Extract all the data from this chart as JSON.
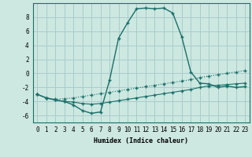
{
  "xlabel": "Humidex (Indice chaleur)",
  "background_color": "#cce8e0",
  "grid_color": "#aacccc",
  "line_color": "#1a6e6a",
  "xlim": [
    -0.5,
    23.5
  ],
  "ylim": [
    -7,
    10
  ],
  "xticks": [
    0,
    1,
    2,
    3,
    4,
    5,
    6,
    7,
    8,
    9,
    10,
    11,
    12,
    13,
    14,
    15,
    16,
    17,
    18,
    19,
    20,
    21,
    22,
    23
  ],
  "yticks": [
    -6,
    -4,
    -2,
    0,
    2,
    4,
    6,
    8
  ],
  "series1_x": [
    0,
    1,
    2,
    3,
    4,
    5,
    6,
    7,
    8,
    9,
    10,
    11,
    12,
    13,
    14,
    15,
    16,
    17,
    18,
    19,
    20,
    21,
    22,
    23
  ],
  "series1_y": [
    -3.0,
    -3.5,
    -3.7,
    -3.6,
    -3.5,
    -3.3,
    -3.1,
    -2.9,
    -2.7,
    -2.5,
    -2.3,
    -2.1,
    -1.9,
    -1.7,
    -1.5,
    -1.3,
    -1.1,
    -0.9,
    -0.6,
    -0.4,
    -0.2,
    0.0,
    0.2,
    0.4
  ],
  "series2_x": [
    0,
    1,
    2,
    3,
    4,
    5,
    6,
    7,
    8,
    9,
    10,
    11,
    12,
    13,
    14,
    15,
    16,
    17,
    18,
    19,
    20,
    21,
    22,
    23
  ],
  "series2_y": [
    -3.0,
    -3.5,
    -3.8,
    -4.0,
    -4.1,
    -4.3,
    -4.4,
    -4.3,
    -4.1,
    -3.9,
    -3.7,
    -3.5,
    -3.3,
    -3.1,
    -2.9,
    -2.7,
    -2.5,
    -2.3,
    -2.0,
    -1.8,
    -1.7,
    -1.6,
    -1.5,
    -1.4
  ],
  "series3_x": [
    0,
    1,
    2,
    3,
    4,
    5,
    6,
    7,
    8,
    9,
    10,
    11,
    12,
    13,
    14,
    15,
    16,
    17,
    18,
    19,
    20,
    21,
    22,
    23
  ],
  "series3_y": [
    -3.0,
    -3.5,
    -3.8,
    -4.0,
    -4.5,
    -5.3,
    -5.7,
    -5.5,
    -1.0,
    5.0,
    7.2,
    9.2,
    9.3,
    9.2,
    9.3,
    8.6,
    5.2,
    0.2,
    -1.4,
    -1.5,
    -2.0,
    -1.8,
    -2.0,
    -1.9
  ]
}
